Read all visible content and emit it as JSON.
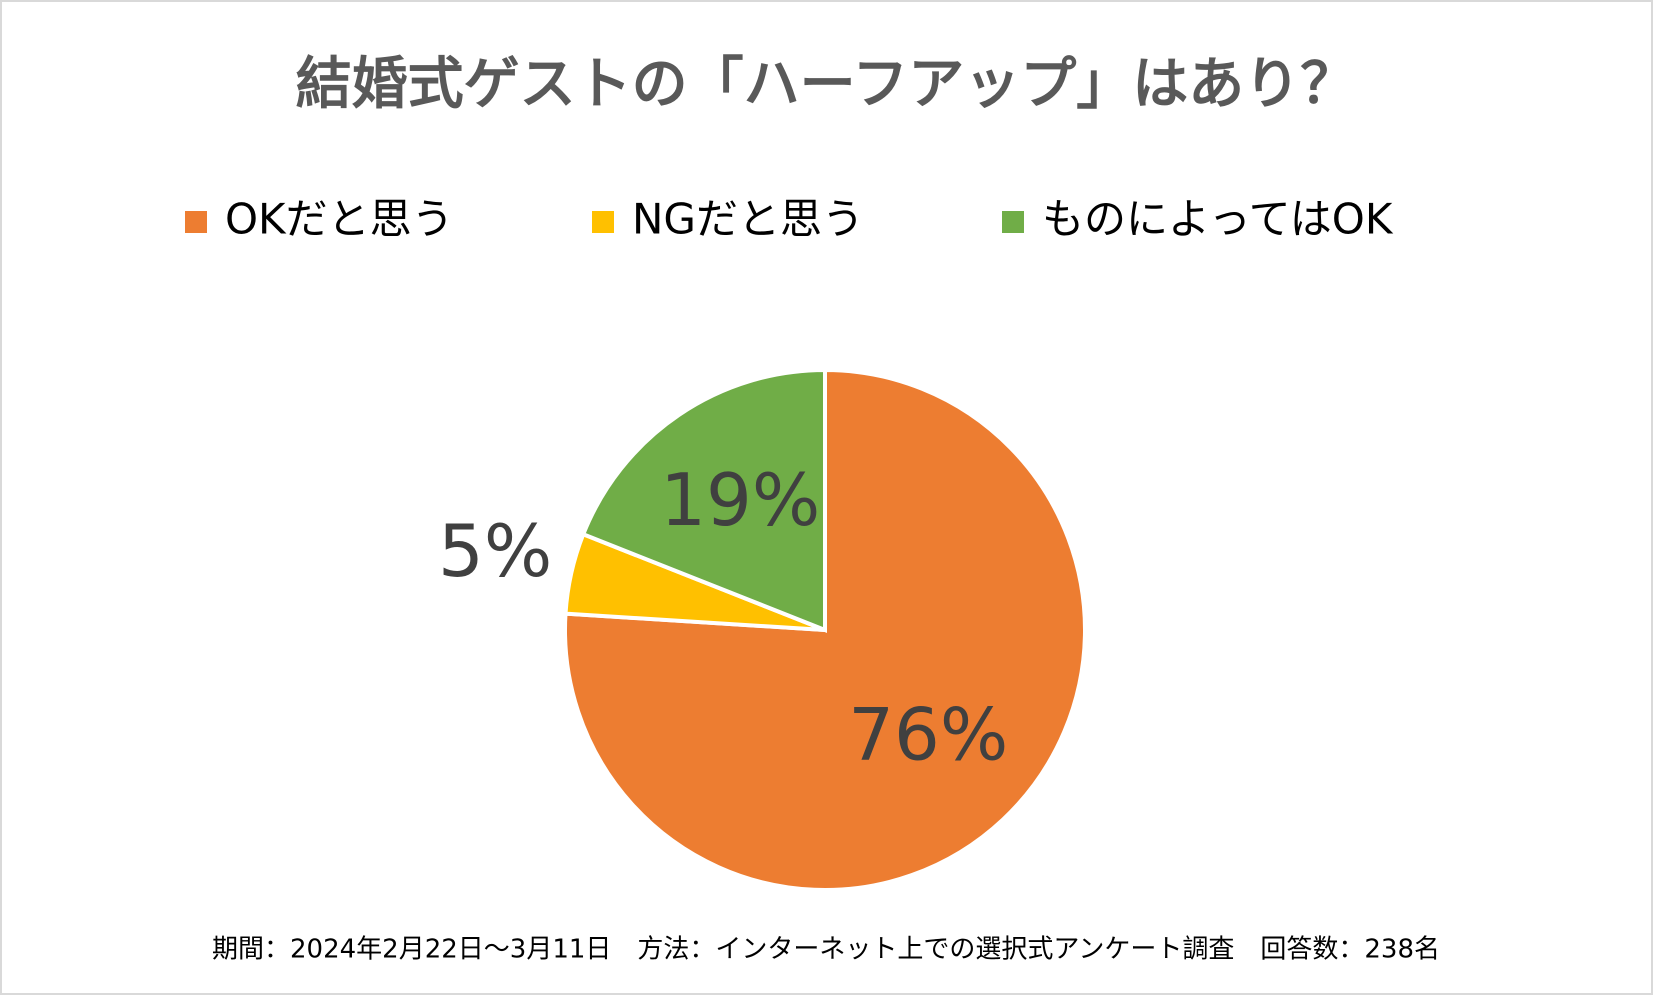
{
  "chart_data": {
    "type": "pie",
    "title": "結婚式ゲストの「ハーフアップ」はあり？",
    "categories": [
      "OKだと思う",
      "NGだと思う",
      "ものによってはOK"
    ],
    "values": [
      76,
      5,
      19
    ],
    "value_labels": [
      "76%",
      "5%",
      "19%"
    ],
    "colors": [
      "#ed7d31",
      "#ffc000",
      "#70ad47"
    ],
    "legend": "top",
    "note": "期間：2024年2月22日～3月11日　方法：インターネット上での選択式アンケート調査　回答数：238名"
  }
}
